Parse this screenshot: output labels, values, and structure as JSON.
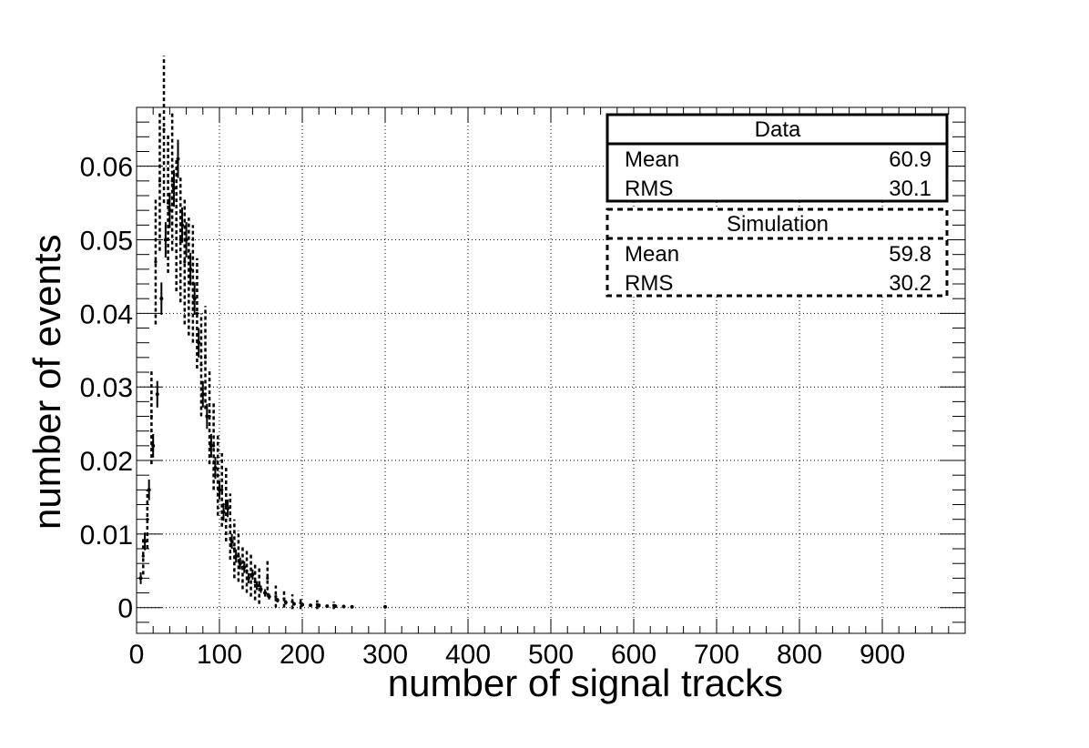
{
  "chart_data": {
    "type": "scatter",
    "xlabel": "number of signal tracks",
    "ylabel": "number of events",
    "xlim": [
      0,
      1000
    ],
    "ylim": [
      -0.0035,
      0.068
    ],
    "grid": true,
    "x_ticks": [
      0,
      100,
      200,
      300,
      400,
      500,
      600,
      700,
      800,
      900
    ],
    "y_ticks": [
      0,
      0.01,
      0.02,
      0.03,
      0.04,
      0.05,
      0.06
    ],
    "y_tick_labels": [
      "0",
      "0.01",
      "0.02",
      "0.03",
      "0.04",
      "0.05",
      "0.06"
    ],
    "legend_position": "top-right",
    "stats": [
      {
        "title": "Data",
        "line_style": "solid",
        "rows": [
          {
            "label": "Mean",
            "value": "60.9"
          },
          {
            "label": "RMS",
            "value": "30.1"
          }
        ]
      },
      {
        "title": "Simulation",
        "line_style": "dashed",
        "rows": [
          {
            "label": "Mean",
            "value": "59.8"
          },
          {
            "label": "RMS",
            "value": "30.2"
          }
        ]
      }
    ],
    "series": [
      {
        "style": "solid",
        "x": [
          5,
          10,
          15,
          20,
          25,
          30,
          35,
          40,
          45,
          50,
          55,
          60,
          65,
          70,
          75,
          80,
          85,
          90,
          95,
          100,
          105,
          110,
          115,
          120,
          125,
          130,
          135,
          140,
          145,
          150,
          155,
          160,
          170,
          180,
          190,
          200,
          210,
          220,
          230,
          240,
          250,
          260,
          300
        ],
        "y": [
          0.004,
          0.009,
          0.016,
          0.022,
          0.029,
          0.042,
          0.05,
          0.054,
          0.057,
          0.061,
          0.052,
          0.05,
          0.046,
          0.042,
          0.036,
          0.029,
          0.026,
          0.022,
          0.019,
          0.016,
          0.013,
          0.0135,
          0.009,
          0.007,
          0.006,
          0.0055,
          0.004,
          0.0045,
          0.003,
          0.0025,
          0.002,
          0.0015,
          0.001,
          0.0007,
          0.0005,
          0.0004,
          0.0003,
          0.0003,
          0.0002,
          0.0002,
          0.00015,
          0.0001,
          0.0001
        ],
        "err": [
          0.0008,
          0.0012,
          0.0014,
          0.0016,
          0.0018,
          0.0022,
          0.0024,
          0.0024,
          0.0025,
          0.0026,
          0.0024,
          0.0024,
          0.0022,
          0.0022,
          0.002,
          0.0018,
          0.0017,
          0.0016,
          0.0015,
          0.0013,
          0.0012,
          0.0012,
          0.001,
          0.0009,
          0.0008,
          0.0008,
          0.0007,
          0.0007,
          0.0006,
          0.0005,
          0.0005,
          0.0004,
          0.0003,
          0.0003,
          0.0002,
          0.0002,
          0.0002,
          0.0002,
          0.0001,
          0.0001,
          0.0001,
          0.0001,
          0.0001
        ]
      },
      {
        "style": "dashed",
        "x": [
          8,
          13,
          18,
          23,
          28,
          33,
          38,
          43,
          48,
          53,
          58,
          63,
          68,
          73,
          78,
          83,
          88,
          93,
          98,
          103,
          108,
          113,
          118,
          123,
          128,
          133,
          138,
          143,
          148,
          158,
          168,
          178,
          188,
          198,
          218,
          238
        ],
        "y": [
          0.007,
          0.012,
          0.026,
          0.047,
          0.058,
          0.065,
          0.055,
          0.058,
          0.052,
          0.05,
          0.047,
          0.045,
          0.044,
          0.04,
          0.033,
          0.034,
          0.026,
          0.022,
          0.018,
          0.016,
          0.014,
          0.011,
          0.008,
          0.007,
          0.0055,
          0.005,
          0.0045,
          0.0035,
          0.003,
          0.004,
          0.0015,
          0.0012,
          0.0008,
          0.0006,
          0.0004,
          0.0003
        ],
        "err": [
          0.0025,
          0.004,
          0.0065,
          0.0085,
          0.0095,
          0.01,
          0.0095,
          0.0095,
          0.009,
          0.0085,
          0.0085,
          0.008,
          0.008,
          0.0075,
          0.007,
          0.007,
          0.0065,
          0.006,
          0.0055,
          0.005,
          0.005,
          0.0045,
          0.004,
          0.0035,
          0.003,
          0.003,
          0.003,
          0.0025,
          0.0025,
          0.0025,
          0.0015,
          0.0012,
          0.001,
          0.0008,
          0.0006,
          0.0005
        ]
      }
    ]
  }
}
